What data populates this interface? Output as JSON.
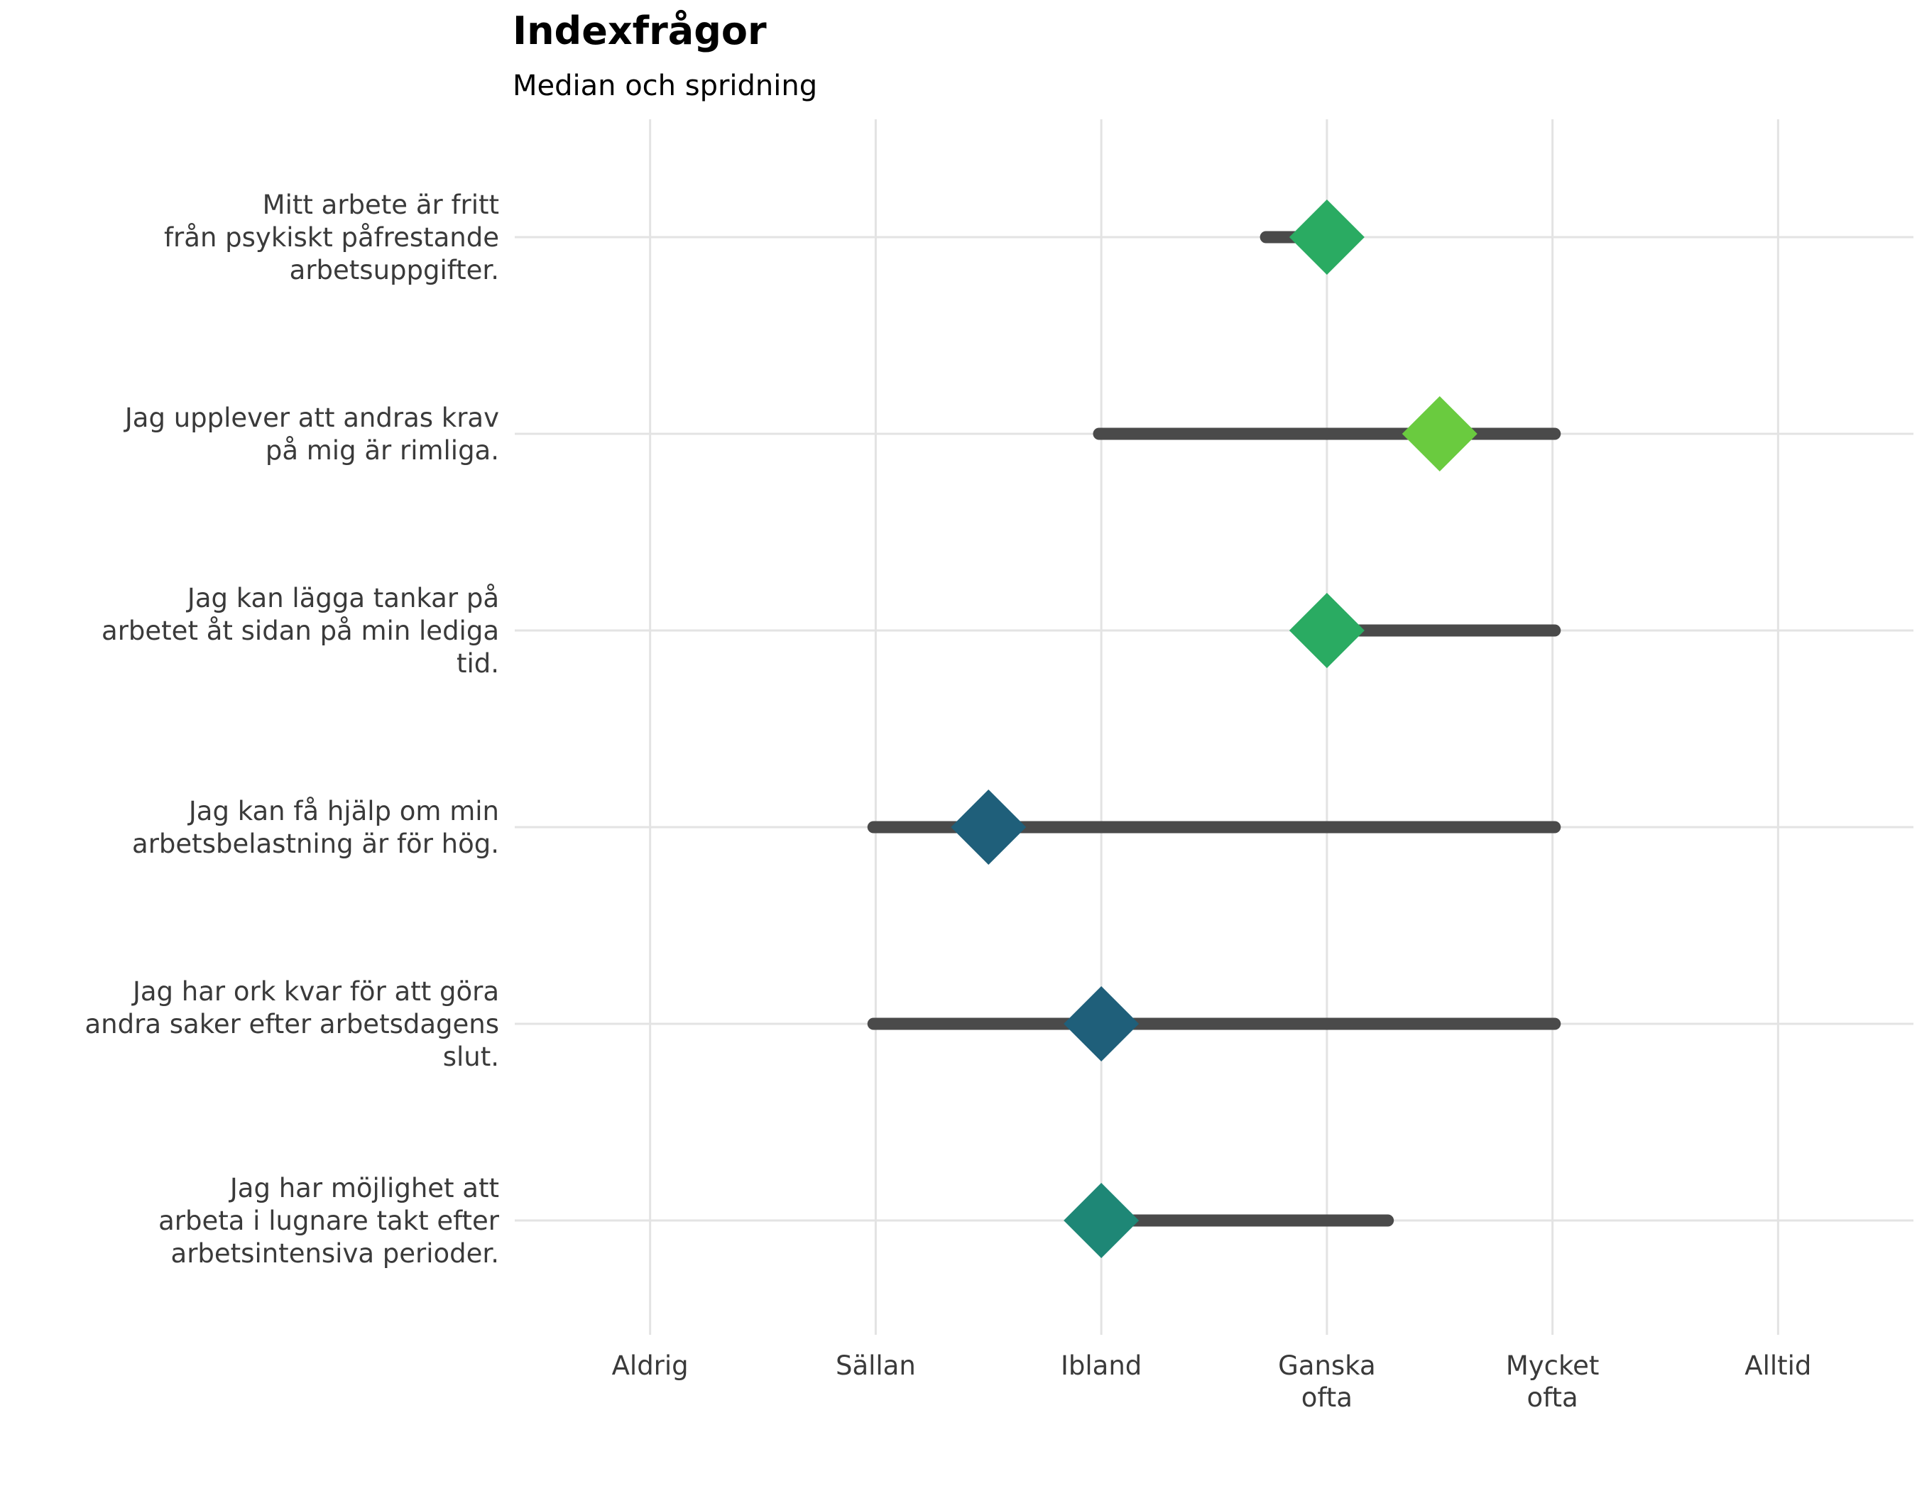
{
  "chart_data": {
    "type": "range-dot",
    "title": "Indexfrågor",
    "subtitle": "Median och spridning",
    "x_ticks": [
      {
        "value": 1,
        "label": [
          "Aldrig"
        ]
      },
      {
        "value": 2,
        "label": [
          "Sällan"
        ]
      },
      {
        "value": 3,
        "label": [
          "Ibland"
        ]
      },
      {
        "value": 4,
        "label": [
          "Ganska",
          "ofta"
        ]
      },
      {
        "value": 5,
        "label": [
          "Mycket",
          "ofta"
        ]
      },
      {
        "value": 6,
        "label": [
          "Alltid"
        ]
      }
    ],
    "xlim": [
      0.4,
      6.6
    ],
    "grid": true,
    "items": [
      {
        "label": [
          "Mitt arbete är fritt",
          "från psykiskt påfrestande",
          "arbetsuppgifter."
        ],
        "min": 3.73,
        "max": 4.0,
        "median": 4.0,
        "color": "#2aab62"
      },
      {
        "label": [
          "Jag upplever att andras krav",
          "på mig är rimliga."
        ],
        "min": 2.99,
        "max": 5.01,
        "median": 4.5,
        "color": "#6acb3f"
      },
      {
        "label": [
          "Jag kan lägga tankar på",
          "arbetet åt sidan på min lediga",
          "tid."
        ],
        "min": 4.0,
        "max": 5.01,
        "median": 4.0,
        "color": "#2aab62"
      },
      {
        "label": [
          "Jag kan få hjälp om min",
          "arbetsbelastning är för hög."
        ],
        "min": 1.99,
        "max": 5.01,
        "median": 2.5,
        "color": "#1f5f7a"
      },
      {
        "label": [
          "Jag har ork kvar för att göra",
          "andra saker efter arbetsdagens",
          "slut."
        ],
        "min": 1.99,
        "max": 5.01,
        "median": 3.0,
        "color": "#1f5f7a"
      },
      {
        "label": [
          "Jag har möjlighet att",
          "arbeta i lugnare takt efter",
          "arbetsintensiva perioder."
        ],
        "min": 3.0,
        "max": 4.27,
        "median": 3.0,
        "color": "#1e8776"
      }
    ],
    "colors": {
      "range_line": "#4a4a4a",
      "grid": "#e3e3e3"
    }
  }
}
